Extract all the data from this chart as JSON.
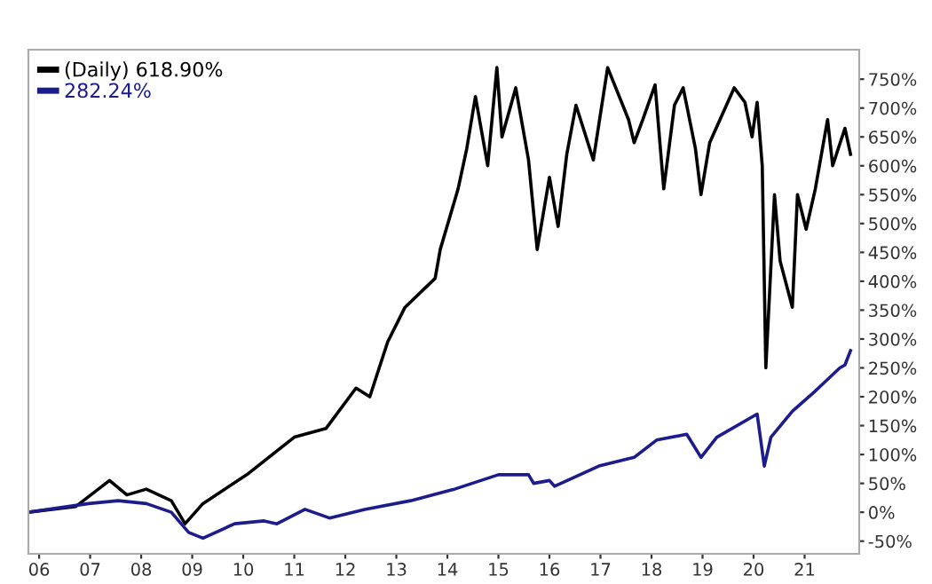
{
  "chart_data": {
    "type": "line",
    "legend": "top left",
    "grid": false,
    "marker": "none",
    "line_style": "solid",
    "xlim": [
      2005.79,
      2022.07
    ],
    "ylim": [
      -72,
      801
    ],
    "xticks": [
      {
        "value": 2006,
        "label": "06"
      },
      {
        "value": 2007,
        "label": "07"
      },
      {
        "value": 2008,
        "label": "08"
      },
      {
        "value": 2009,
        "label": "09"
      },
      {
        "value": 2010,
        "label": "10"
      },
      {
        "value": 2011,
        "label": "11"
      },
      {
        "value": 2012,
        "label": "12"
      },
      {
        "value": 2013,
        "label": "13"
      },
      {
        "value": 2014,
        "label": "14"
      },
      {
        "value": 2015,
        "label": "15"
      },
      {
        "value": 2016,
        "label": "16"
      },
      {
        "value": 2017,
        "label": "17"
      },
      {
        "value": 2018,
        "label": "18"
      },
      {
        "value": 2019,
        "label": "19"
      },
      {
        "value": 2020,
        "label": "20"
      },
      {
        "value": 2021,
        "label": "21"
      }
    ],
    "yticks": [
      {
        "value": -50,
        "label": "-50%"
      },
      {
        "value": 0,
        "label": "0%"
      },
      {
        "value": 50,
        "label": "50%"
      },
      {
        "value": 100,
        "label": "100%"
      },
      {
        "value": 150,
        "label": "150%"
      },
      {
        "value": 200,
        "label": "200%"
      },
      {
        "value": 250,
        "label": "250%"
      },
      {
        "value": 300,
        "label": "300%"
      },
      {
        "value": 350,
        "label": "350%"
      },
      {
        "value": 400,
        "label": "400%"
      },
      {
        "value": 450,
        "label": "450%"
      },
      {
        "value": 500,
        "label": "500%"
      },
      {
        "value": 550,
        "label": "550%"
      },
      {
        "value": 600,
        "label": "600%"
      },
      {
        "value": 650,
        "label": "650%"
      },
      {
        "value": 700,
        "label": "700%"
      },
      {
        "value": 750,
        "label": "750%"
      }
    ],
    "series": [
      {
        "name": "(Daily) 618.90%",
        "color": "#000000",
        "x": [
          2005.79,
          2006.72,
          2007.38,
          2007.72,
          2008.1,
          2008.59,
          2008.86,
          2009.21,
          2010.07,
          2011.0,
          2011.62,
          2012.21,
          2012.48,
          2012.83,
          2013.17,
          2013.76,
          2013.86,
          2014.21,
          2014.38,
          2014.55,
          2014.79,
          2014.97,
          2015.07,
          2015.34,
          2015.59,
          2015.76,
          2016.0,
          2016.17,
          2016.34,
          2016.52,
          2016.86,
          2017.14,
          2017.55,
          2017.66,
          2017.83,
          2018.07,
          2018.24,
          2018.45,
          2018.62,
          2018.86,
          2018.97,
          2019.14,
          2019.62,
          2019.83,
          2019.97,
          2020.07,
          2020.17,
          2020.24,
          2020.41,
          2020.52,
          2020.76,
          2020.86,
          2021.03,
          2021.21,
          2021.45,
          2021.55,
          2021.79,
          2021.9
        ],
        "values": [
          0,
          10,
          55,
          30,
          40,
          20,
          -20,
          15,
          65,
          130,
          145,
          215,
          200,
          295,
          355,
          405,
          455,
          560,
          630,
          720,
          600,
          770,
          650,
          735,
          610,
          455,
          580,
          495,
          620,
          705,
          610,
          770,
          680,
          640,
          680,
          740,
          560,
          705,
          735,
          630,
          550,
          640,
          735,
          710,
          650,
          710,
          600,
          250,
          550,
          435,
          355,
          550,
          490,
          560,
          680,
          600,
          665,
          620
        ]
      },
      {
        "name": "282.24%",
        "color": "#1c1c8c",
        "x": [
          2005.79,
          2006.97,
          2007.55,
          2008.1,
          2008.59,
          2008.93,
          2009.21,
          2009.83,
          2010.41,
          2010.66,
          2011.21,
          2011.69,
          2012.38,
          2013.28,
          2014.14,
          2015.0,
          2015.59,
          2015.69,
          2016.0,
          2016.1,
          2016.97,
          2017.66,
          2018.1,
          2018.69,
          2018.97,
          2019.28,
          2020.07,
          2020.21,
          2020.34,
          2020.76,
          2021.21,
          2021.69,
          2021.79,
          2021.9
        ],
        "values": [
          0,
          15,
          20,
          15,
          0,
          -35,
          -45,
          -20,
          -15,
          -20,
          5,
          -10,
          5,
          20,
          40,
          65,
          65,
          50,
          55,
          45,
          80,
          95,
          125,
          135,
          95,
          130,
          170,
          80,
          130,
          175,
          210,
          250,
          255,
          280
        ]
      }
    ]
  }
}
